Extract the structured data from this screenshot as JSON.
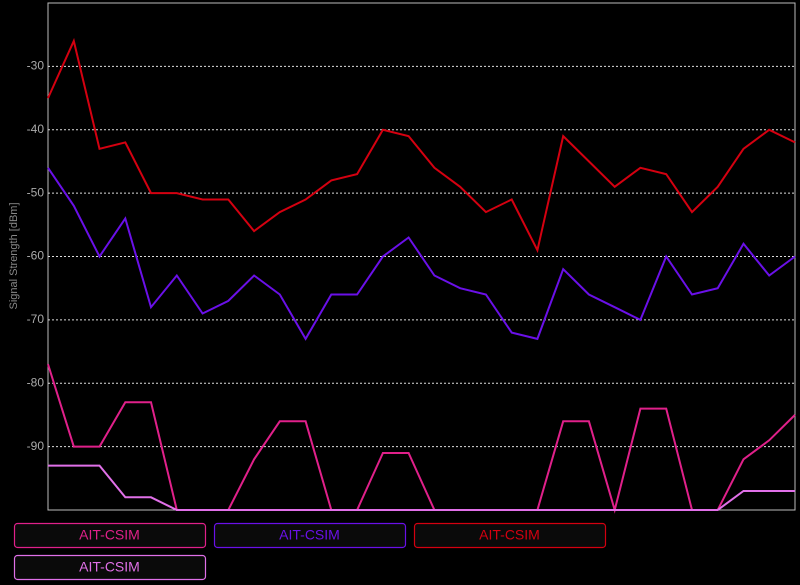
{
  "chart_data": {
    "type": "line",
    "y_label": "Signal Strength [dBm]",
    "categories": [
      null,
      null,
      null,
      null,
      null,
      null,
      null,
      null,
      null,
      null,
      null,
      null,
      null,
      null,
      null,
      null,
      null,
      null,
      null,
      null,
      null,
      null,
      null,
      null,
      null,
      null,
      null,
      null,
      null,
      null
    ],
    "ylim": [
      -100,
      -20
    ],
    "yticks": [
      -30,
      -40,
      -50,
      -60,
      -70,
      -80,
      -90
    ],
    "grid": true,
    "legend": "bottom",
    "series": [
      {
        "name": "AIT-CSIM",
        "color": "#e0208a",
        "values": [
          -77,
          -90,
          -90,
          -83,
          -83,
          -100,
          -100,
          -100,
          -92,
          -86,
          -86,
          -100,
          -100,
          -91,
          -91,
          -100,
          -100,
          -100,
          -100,
          -100,
          -86,
          -86,
          -100,
          -84,
          -84,
          -100,
          -100,
          -92,
          -89,
          -85
        ]
      },
      {
        "name": "AIT-CSIM",
        "color": "#6a10e8",
        "values": [
          -46,
          -52,
          -60,
          -54,
          -68,
          -63,
          -69,
          -67,
          -63,
          -66,
          -73,
          -66,
          -66,
          -60,
          -57,
          -63,
          -65,
          -66,
          -72,
          -73,
          -62,
          -66,
          -68,
          -70,
          -60,
          -66,
          -65,
          -58,
          -63,
          -60
        ]
      },
      {
        "name": "AIT-CSIM",
        "color": "#d40010",
        "values": [
          -35,
          -26,
          -43,
          -42,
          -50,
          -50,
          -51,
          -51,
          -56,
          -53,
          -51,
          -48,
          -47,
          -40,
          -41,
          -46,
          -49,
          -53,
          -51,
          -59,
          -41,
          -45,
          -49,
          -46,
          -47,
          -53,
          -49,
          -43,
          -40,
          -42
        ]
      },
      {
        "name": "AIT-CSIM",
        "color": "#e070e8",
        "values": [
          -93,
          -93,
          -93,
          -98,
          -98,
          -100,
          -100,
          -100,
          -100,
          -100,
          -100,
          -100,
          -100,
          -100,
          -100,
          -100,
          -100,
          -100,
          -100,
          -100,
          -100,
          -100,
          -100,
          -100,
          -100,
          -100,
          -100,
          -97,
          -97,
          -97
        ]
      }
    ]
  }
}
